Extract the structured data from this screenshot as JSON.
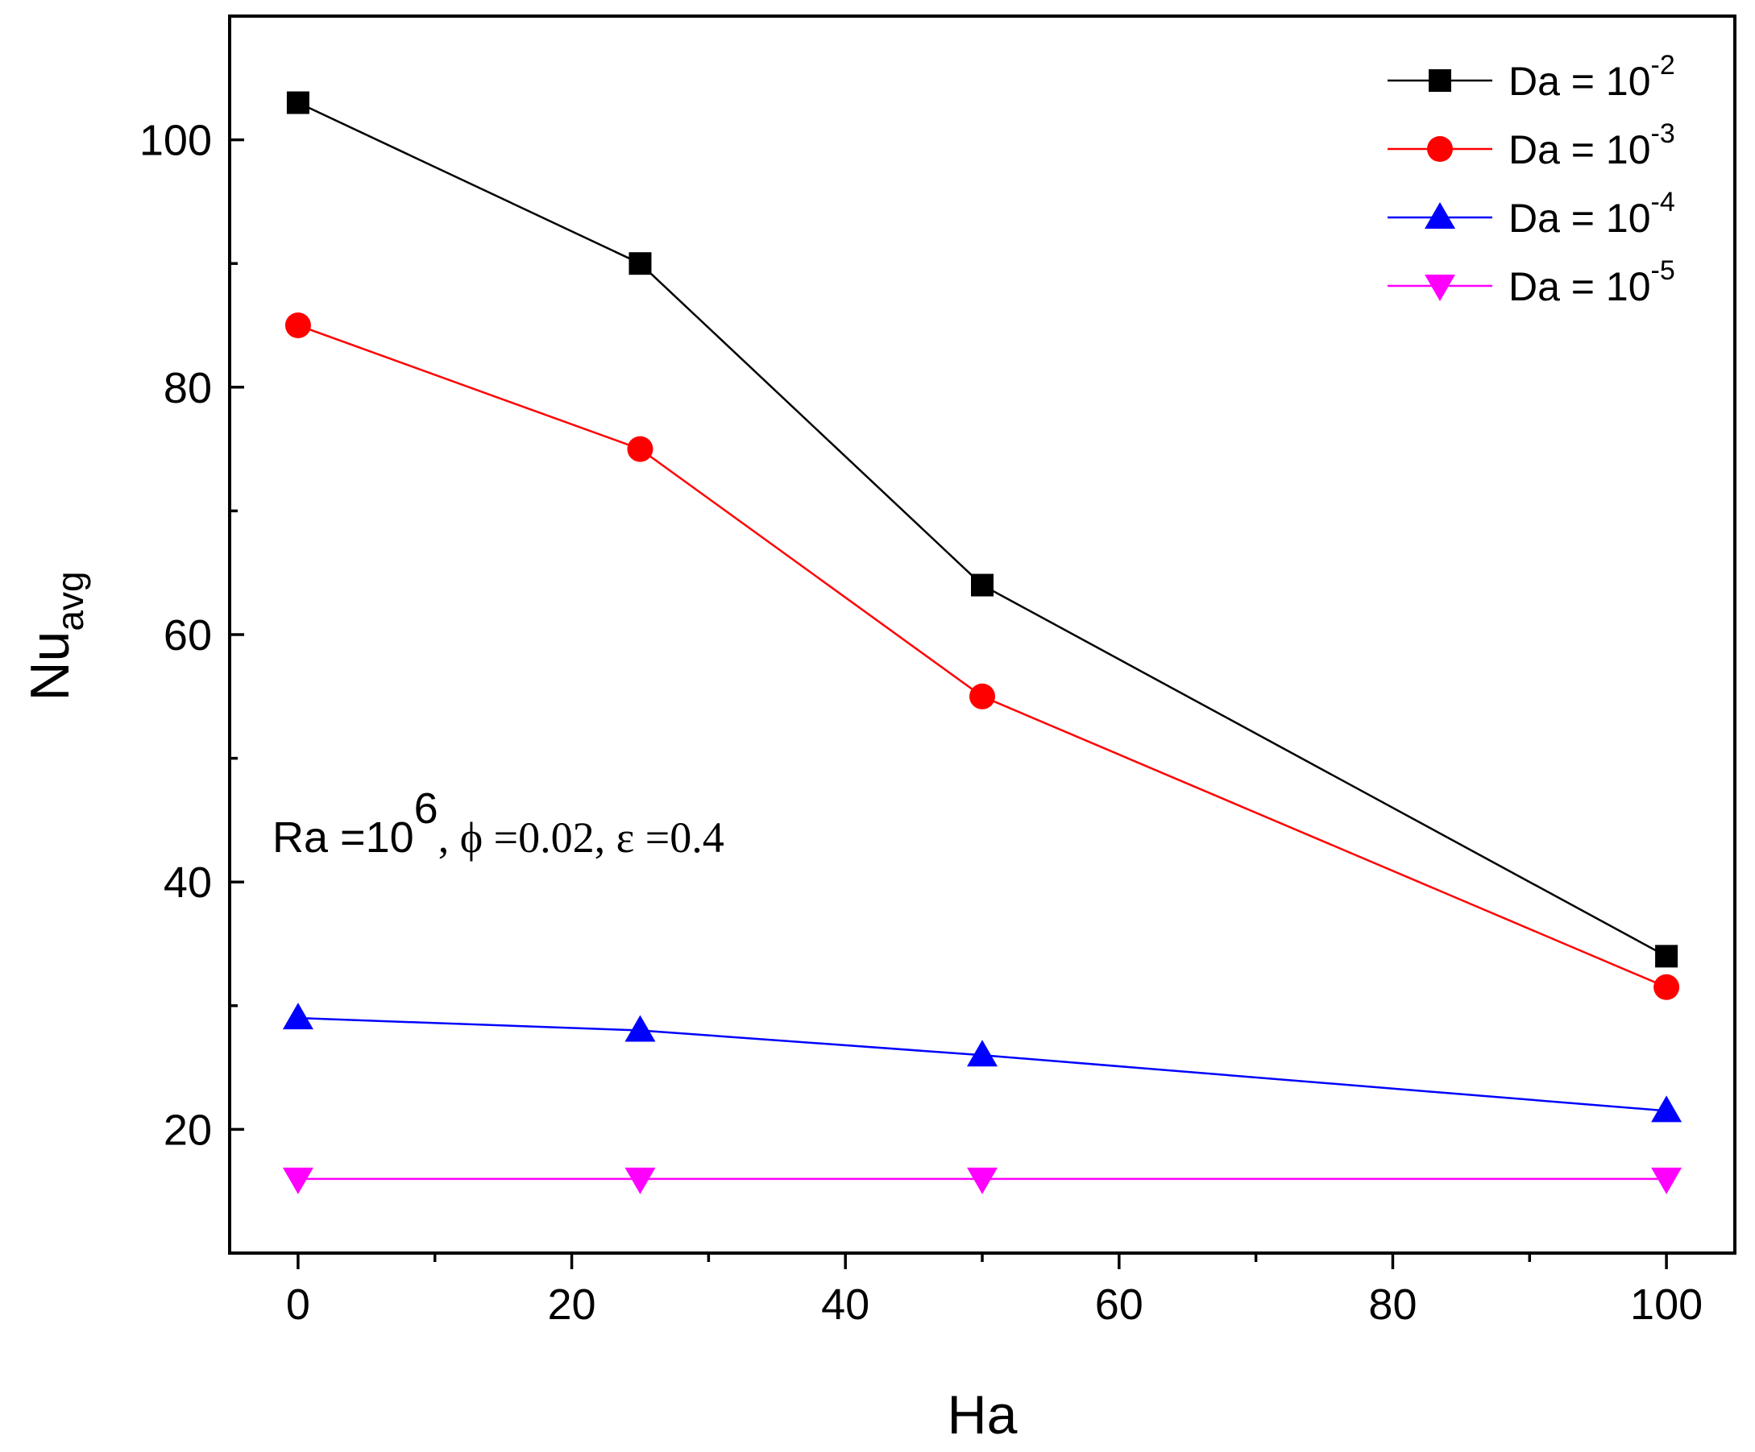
{
  "chart_data": {
    "type": "line",
    "title": "",
    "xlabel": "Ha",
    "ylabel": {
      "main": "Nu",
      "sub": "avg"
    },
    "xlim": [
      -5,
      105
    ],
    "ylim": [
      10,
      110
    ],
    "xticks": [
      0,
      20,
      40,
      60,
      80,
      100
    ],
    "yticks": [
      20,
      40,
      60,
      80,
      100
    ],
    "x": [
      0,
      25,
      50,
      100
    ],
    "series": [
      {
        "name": "Da = 10",
        "exp": "-2",
        "marker": "square",
        "color": "#000000",
        "values": [
          103,
          90,
          64,
          34
        ]
      },
      {
        "name": "Da = 10",
        "exp": "-3",
        "marker": "circle",
        "color": "#ff0000",
        "values": [
          85,
          75,
          55,
          31.5
        ]
      },
      {
        "name": "Da = 10",
        "exp": "-4",
        "marker": "triangle-up",
        "color": "#0000ff",
        "values": [
          29,
          28,
          26,
          21.5
        ]
      },
      {
        "name": "Da = 10",
        "exp": "-5",
        "marker": "triangle-down",
        "color": "#ff00ff",
        "values": [
          16,
          16,
          16,
          16
        ]
      }
    ],
    "legend_position": "top-right",
    "annotation": {
      "ra": "Ra =10",
      "ra_exp": "6",
      "rest": ", ϕ =0.02, ε =0.4"
    }
  }
}
